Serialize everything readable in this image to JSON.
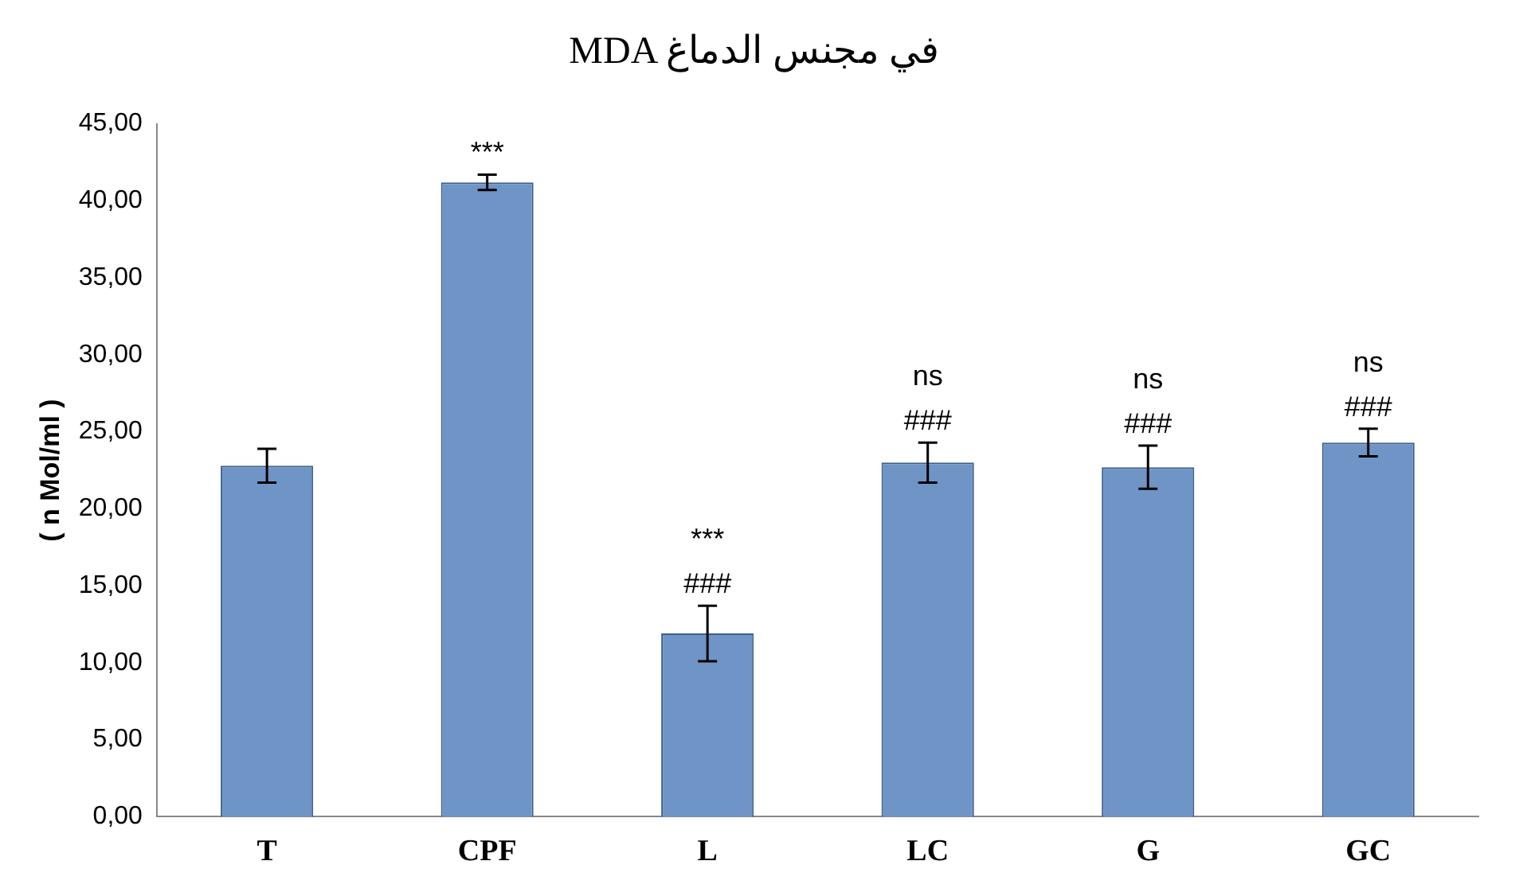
{
  "chart_data": {
    "type": "bar",
    "title": "MDA في مجنس الدماغ",
    "ylabel": "( n Mol/ml )",
    "categories": [
      "T",
      "CPF",
      "L",
      "LC",
      "G",
      "GC"
    ],
    "values": [
      22.8,
      41.2,
      11.9,
      23.0,
      22.7,
      24.3
    ],
    "errors": [
      1.1,
      0.5,
      1.8,
      1.3,
      1.4,
      0.9
    ],
    "color": "#6f94c6",
    "ylim": [
      0,
      45
    ],
    "yticks": [
      {
        "value": 0,
        "label": "0,00"
      },
      {
        "value": 5,
        "label": "5,00"
      },
      {
        "value": 10,
        "label": "10,00"
      },
      {
        "value": 15,
        "label": "15,00"
      },
      {
        "value": 20,
        "label": "20,00"
      },
      {
        "value": 25,
        "label": "25,00"
      },
      {
        "value": 30,
        "label": "30,00"
      },
      {
        "value": 35,
        "label": "35,00"
      },
      {
        "value": 40,
        "label": "40,00"
      },
      {
        "value": 45,
        "label": "45,00"
      }
    ],
    "grid": false,
    "legend": false,
    "annotations": [
      {
        "text": "***",
        "x": "CPF",
        "y": 41.2
      },
      {
        "text": "###",
        "x": "L",
        "y": 11.9
      },
      "***",
      {
        "text": "###",
        "x": "LC",
        "y": 23.0
      },
      "ns",
      {
        "text": "###",
        "x": "G",
        "y": 22.7
      },
      "ns",
      {
        "text": "###",
        "x": "GC",
        "y": 24.3
      },
      "ns"
    ]
  }
}
